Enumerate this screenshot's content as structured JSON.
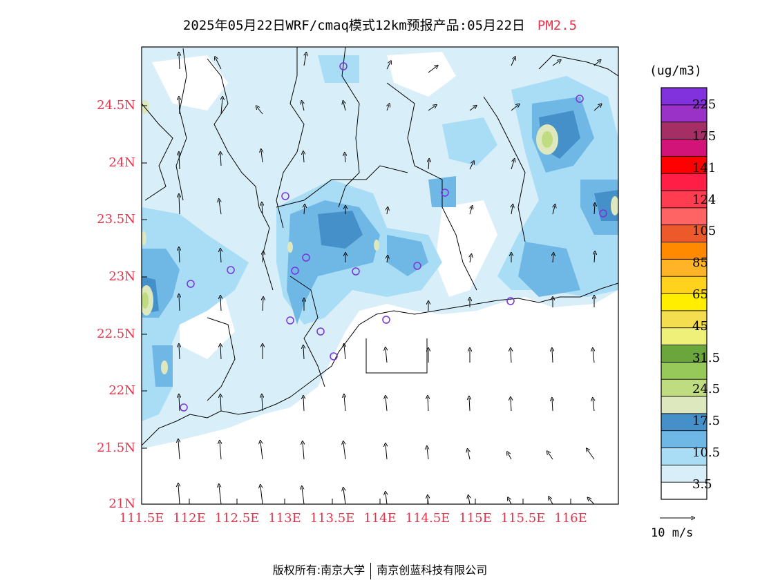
{
  "title": {
    "main": "2025年05月22日WRF/cmaq模式12km预报产品:05月22日",
    "variable": "PM2.5"
  },
  "map": {
    "lat_ticks": [
      "24.5N",
      "24N",
      "23.5N",
      "23N",
      "22.5N",
      "22N",
      "21.5N",
      "21N"
    ],
    "lon_ticks": [
      "111.5E",
      "112E",
      "112.5E",
      "113E",
      "113.5E",
      "114E",
      "114.5E",
      "115E",
      "115.5E",
      "116E"
    ],
    "lat_range": [
      21,
      25
    ],
    "lon_range": [
      111.5,
      116.5
    ]
  },
  "colorbar": {
    "unit": "(ug/m3)",
    "colors": [
      "#ffffff",
      "#d8eef8",
      "#a9ddf5",
      "#6fb8e6",
      "#4590c8",
      "#dde8be",
      "#c0dc80",
      "#96c85a",
      "#6aa63c",
      "#eff07a",
      "#f5dd50",
      "#ffee00",
      "#ffd21e",
      "#ffb428",
      "#ff8a00",
      "#ec5a2c",
      "#ff6464",
      "#ff3c50",
      "#ff1e46",
      "#ff0000",
      "#d21478",
      "#a52e64",
      "#9b32c8",
      "#8232dc"
    ],
    "labels": [
      "3.5",
      "10.5",
      "17.5",
      "24.5",
      "31.5",
      "45",
      "65",
      "85",
      "105",
      "124",
      "141",
      "175",
      "225"
    ]
  },
  "wind": {
    "reference_label": "10 m/s"
  },
  "footer": {
    "copyright": "版权所有:南京大学",
    "company": "南京创蓝科技有限公司"
  }
}
